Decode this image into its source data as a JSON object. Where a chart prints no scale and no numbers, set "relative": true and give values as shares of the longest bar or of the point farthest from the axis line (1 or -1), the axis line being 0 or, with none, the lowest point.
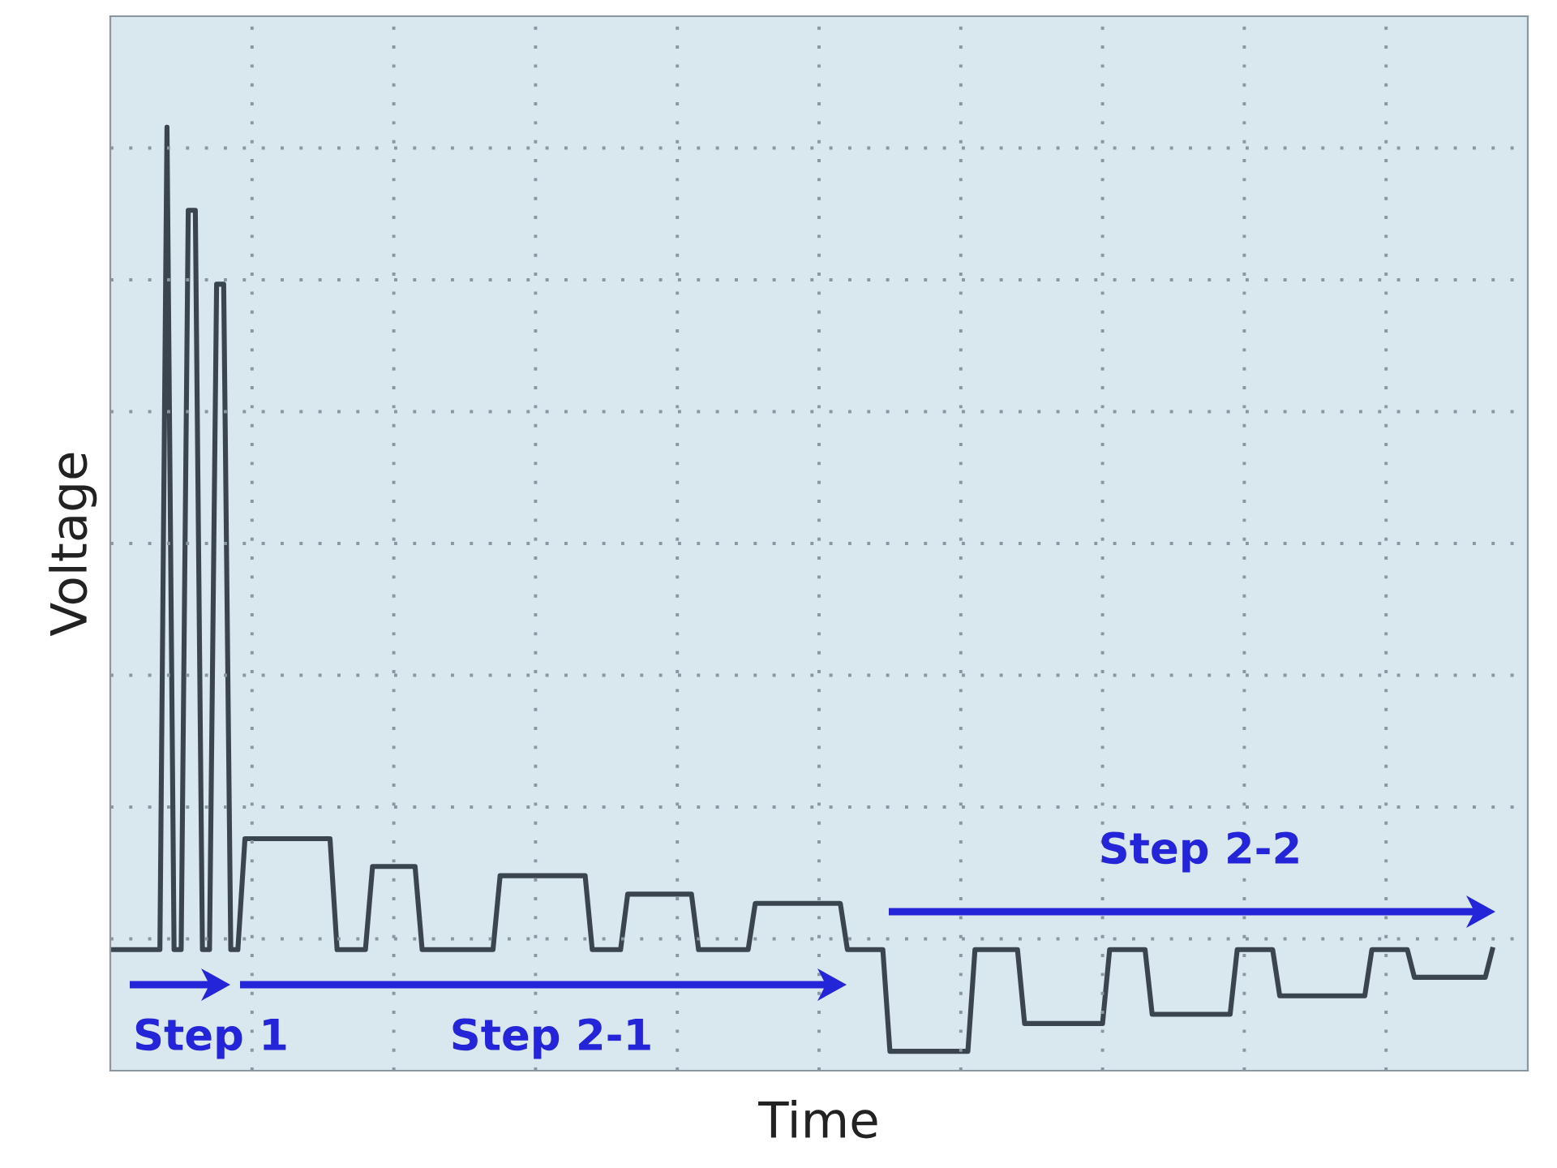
{
  "chart_data": {
    "type": "line",
    "relative": true,
    "xlabel": "Time",
    "ylabel": "Voltage",
    "grid": true,
    "legend": false,
    "marker": "none",
    "line_style": "solid",
    "annotations": [
      "Step 1",
      "Step 2-1",
      "Step 2-2"
    ],
    "categories": [
      null,
      null,
      null,
      null,
      null,
      null,
      null,
      null,
      null,
      null,
      null,
      null,
      null,
      null,
      null,
      null,
      null,
      null,
      null,
      null,
      null,
      null,
      null,
      null,
      null,
      null,
      null,
      null,
      null,
      null,
      null,
      null,
      null,
      null,
      null,
      null,
      null,
      null,
      null,
      null,
      null,
      null,
      null,
      null,
      null,
      null,
      null,
      null,
      null,
      null,
      null,
      null,
      null,
      null,
      null,
      null,
      null,
      null,
      null,
      null,
      null,
      null,
      null,
      null,
      null,
      null,
      null,
      null,
      null,
      null,
      null,
      null,
      null,
      null,
      null,
      null,
      null,
      null,
      null,
      null,
      null,
      null,
      null,
      null,
      null,
      null,
      null,
      null,
      null,
      null,
      null,
      null,
      null,
      null,
      null,
      null,
      null,
      null,
      null,
      null,
      null,
      null,
      null,
      null,
      null,
      null,
      null,
      null,
      null,
      null,
      null,
      null,
      null,
      null,
      null,
      null,
      null,
      null,
      null,
      null,
      null,
      null,
      null,
      null,
      null,
      null,
      null,
      null,
      null,
      null,
      null,
      null,
      null,
      null,
      null,
      null,
      null,
      null,
      null,
      null,
      null,
      null,
      null,
      null,
      null,
      null,
      null,
      null,
      null,
      null,
      null,
      null,
      null,
      null,
      null,
      null,
      null,
      null,
      null,
      null,
      null,
      null,
      null,
      null,
      null,
      null,
      null,
      null,
      null,
      null,
      null,
      null,
      null,
      null,
      null,
      null,
      null,
      null,
      null,
      null,
      null,
      null,
      null,
      null,
      null,
      null,
      null,
      null,
      null,
      null,
      null,
      null,
      null,
      null,
      null,
      null,
      null,
      null,
      null,
      null
    ],
    "series": [
      {
        "color": "#3a4550",
        "values": [
          0.11,
          0.11,
          0.11,
          0.11,
          0.11,
          0.11,
          0.11,
          0.11,
          1,
          0.11,
          0.11,
          0.91,
          0.91,
          0.11,
          0.11,
          0.83,
          0.83,
          0.11,
          0.11,
          0.23,
          0.23,
          0.23,
          0.23,
          0.23,
          0.23,
          0.23,
          0.23,
          0.23,
          0.23,
          0.23,
          0.23,
          0.23,
          0.11,
          0.11,
          0.11,
          0.11,
          0.11,
          0.2,
          0.2,
          0.2,
          0.2,
          0.2,
          0.2,
          0.2,
          0.11,
          0.11,
          0.11,
          0.11,
          0.11,
          0.11,
          0.11,
          0.11,
          0.11,
          0.11,
          0.11,
          0.19,
          0.19,
          0.19,
          0.19,
          0.19,
          0.19,
          0.19,
          0.19,
          0.19,
          0.19,
          0.19,
          0.19,
          0.19,
          0.11,
          0.11,
          0.11,
          0.11,
          0.11,
          0.17,
          0.17,
          0.17,
          0.17,
          0.17,
          0.17,
          0.17,
          0.17,
          0.17,
          0.17,
          0.11,
          0.11,
          0.11,
          0.11,
          0.11,
          0.11,
          0.11,
          0.11,
          0.16,
          0.16,
          0.16,
          0.16,
          0.16,
          0.16,
          0.16,
          0.16,
          0.16,
          0.16,
          0.16,
          0.16,
          0.16,
          0.11,
          0.11,
          0.11,
          0.11,
          0.11,
          0.11,
          0,
          0,
          0,
          0,
          0,
          0,
          0,
          0,
          0,
          0,
          0,
          0,
          0.11,
          0.11,
          0.11,
          0.11,
          0.11,
          0.11,
          0.11,
          0.03,
          0.03,
          0.03,
          0.03,
          0.03,
          0.03,
          0.03,
          0.03,
          0.03,
          0.03,
          0.03,
          0.03,
          0.11,
          0.11,
          0.11,
          0.11,
          0.11,
          0.11,
          0.04,
          0.04,
          0.04,
          0.04,
          0.04,
          0.04,
          0.04,
          0.04,
          0.04,
          0.04,
          0.04,
          0.04,
          0.11,
          0.11,
          0.11,
          0.11,
          0.11,
          0.11,
          0.06,
          0.06,
          0.06,
          0.06,
          0.06,
          0.06,
          0.06,
          0.06,
          0.06,
          0.06,
          0.06,
          0.06,
          0.06,
          0.11,
          0.11,
          0.11,
          0.11,
          0.11,
          0.11,
          0.08,
          0.08,
          0.08,
          0.08,
          0.08,
          0.08,
          0.08,
          0.08,
          0.08,
          0.08,
          0.08,
          0.11,
          null,
          null,
          null,
          null
        ]
      }
    ]
  }
}
